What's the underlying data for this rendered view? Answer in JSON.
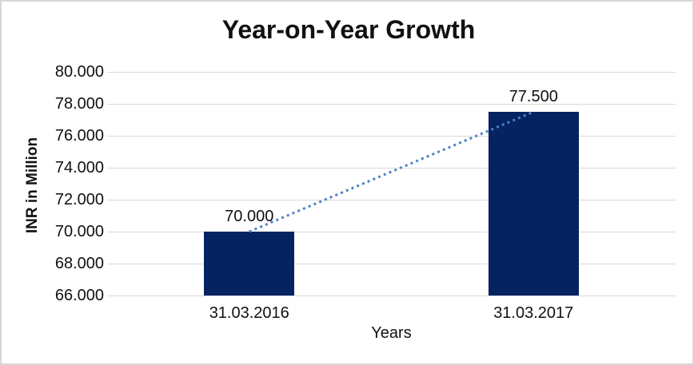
{
  "chart_data": {
    "type": "bar",
    "title": "Year-on-Year Growth",
    "xlabel": "Years",
    "ylabel": "INR in Million",
    "categories": [
      "31.03.2016",
      "31.03.2017"
    ],
    "values": [
      70.0,
      77.5
    ],
    "value_labels": [
      "70.000",
      "77.500"
    ],
    "ylim": [
      66,
      80
    ],
    "ytick_step": 2,
    "ytick_labels": [
      "66.000",
      "68.000",
      "70.000",
      "72.000",
      "74.000",
      "76.000",
      "78.000",
      "80.000"
    ],
    "grid": true,
    "legend": false,
    "trendline": {
      "type": "linear",
      "style": "dotted",
      "from_value": 70.0,
      "to_value": 77.5
    },
    "colors": {
      "bar": "#052261",
      "trendline": "#4C82C6",
      "gridline": "#D9D9D9",
      "frame_border": "#D7D7D7",
      "background": "#FFFFFF",
      "text": "#111111"
    }
  }
}
